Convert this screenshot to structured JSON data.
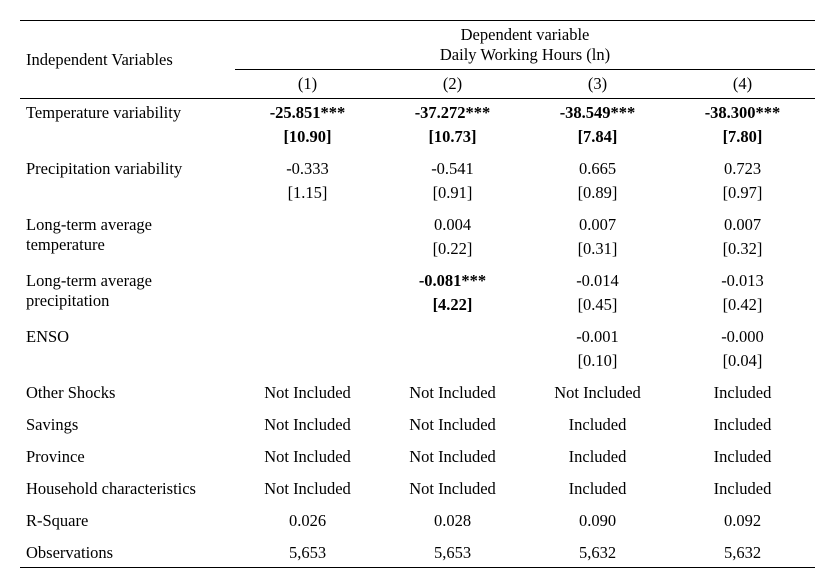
{
  "header": {
    "independent_label": "Independent Variables",
    "dependent_line1": "Dependent variable",
    "dependent_line2": "Daily Working Hours (ln)",
    "cols": [
      "(1)",
      "(2)",
      "(3)",
      "(4)"
    ]
  },
  "rows": [
    {
      "label": "Temperature variability",
      "cells": [
        {
          "val": "-25.851***",
          "se": "[10.90]",
          "bold": true
        },
        {
          "val": "-37.272***",
          "se": "[10.73]",
          "bold": true
        },
        {
          "val": "-38.549***",
          "se": "[7.84]",
          "bold": true
        },
        {
          "val": "-38.300***",
          "se": "[7.80]",
          "bold": true
        }
      ]
    },
    {
      "label": "Precipitation variability",
      "cells": [
        {
          "val": "-0.333",
          "se": "[1.15]",
          "bold": false
        },
        {
          "val": "-0.541",
          "se": "[0.91]",
          "bold": false
        },
        {
          "val": "0.665",
          "se": "[0.89]",
          "bold": false
        },
        {
          "val": "0.723",
          "se": "[0.97]",
          "bold": false
        }
      ]
    },
    {
      "label": "Long-term average temperature",
      "label2": "",
      "cells": [
        {
          "val": "",
          "se": "",
          "bold": false
        },
        {
          "val": "0.004",
          "se": "[0.22]",
          "bold": false
        },
        {
          "val": "0.007",
          "se": "[0.31]",
          "bold": false
        },
        {
          "val": "0.007",
          "se": "[0.32]",
          "bold": false
        }
      ]
    },
    {
      "label": "Long-term average precipitation",
      "cells": [
        {
          "val": "",
          "se": "",
          "bold": false
        },
        {
          "val": "-0.081***",
          "se": "[4.22]",
          "bold": true
        },
        {
          "val": "-0.014",
          "se": "[0.45]",
          "bold": false
        },
        {
          "val": "-0.013",
          "se": "[0.42]",
          "bold": false
        }
      ]
    },
    {
      "label": "ENSO",
      "cells": [
        {
          "val": "",
          "se": "",
          "bold": false
        },
        {
          "val": "",
          "se": "",
          "bold": false
        },
        {
          "val": "-0.001",
          "se": "[0.10]",
          "bold": false
        },
        {
          "val": "-0.000",
          "se": "[0.04]",
          "bold": false
        }
      ]
    }
  ],
  "controls": [
    {
      "label": "Other Shocks",
      "vals": [
        "Not Included",
        "Not Included",
        "Not Included",
        "Included"
      ]
    },
    {
      "label": "Savings",
      "vals": [
        "Not Included",
        "Not Included",
        "Included",
        "Included"
      ]
    },
    {
      "label": "Province",
      "vals": [
        "Not Included",
        "Not Included",
        "Included",
        "Included"
      ]
    },
    {
      "label": "Household characteristics",
      "vals": [
        "Not Included",
        "Not Included",
        "Included",
        "Included"
      ]
    }
  ],
  "stats": [
    {
      "label": "R-Square",
      "vals": [
        "0.026",
        "0.028",
        "0.090",
        "0.092"
      ]
    },
    {
      "label": "Observations",
      "vals": [
        "5,653",
        "5,653",
        "5,632",
        "5,632"
      ]
    }
  ]
}
